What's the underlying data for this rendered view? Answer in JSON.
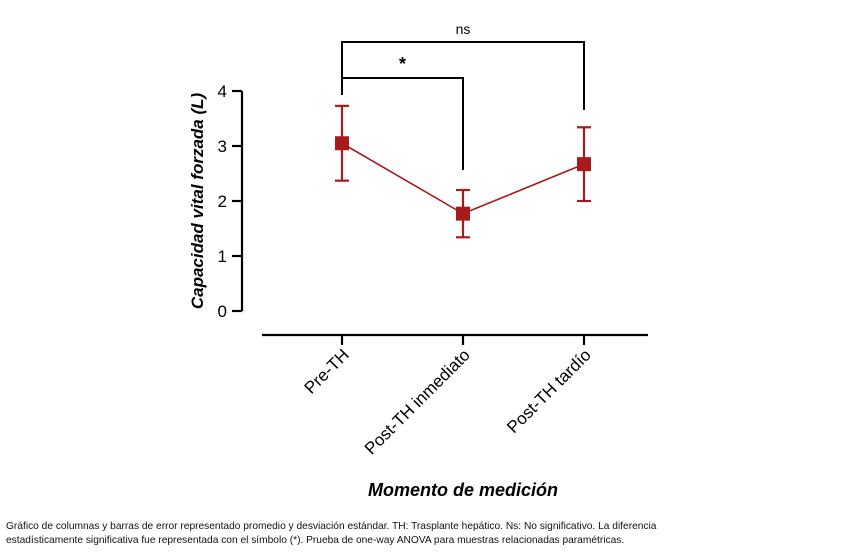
{
  "chart_data": {
    "type": "line-errorbar",
    "categories": [
      "Pre-TH",
      "Post-TH inmediato",
      "Post-TH tardío"
    ],
    "series": [
      {
        "name": "Capacidad vital forzada",
        "values": [
          3.05,
          1.77,
          2.67
        ],
        "error": [
          0.68,
          0.43,
          0.67
        ],
        "color": "#a81b1b"
      }
    ],
    "xlabel": "Momento de medición",
    "ylabel": "Capacidad vital forzada (L)",
    "ylim": [
      0,
      4
    ],
    "yticks": [
      0,
      1,
      2,
      3,
      4
    ],
    "significance": [
      {
        "from": 0,
        "to": 1,
        "label": "*"
      },
      {
        "from": 0,
        "to": 2,
        "label": "ns"
      }
    ]
  },
  "caption": {
    "line1": "Gráfico de columnas y barras de error representado promedio y desviación estándar. TH: Trasplante hepático. Ns: No significativo. La diferencia",
    "line2": "estadísticamente significativa fue representada con el símbolo (*). Prueba de one-way ANOVA para muestras relacionadas paramétricas."
  }
}
